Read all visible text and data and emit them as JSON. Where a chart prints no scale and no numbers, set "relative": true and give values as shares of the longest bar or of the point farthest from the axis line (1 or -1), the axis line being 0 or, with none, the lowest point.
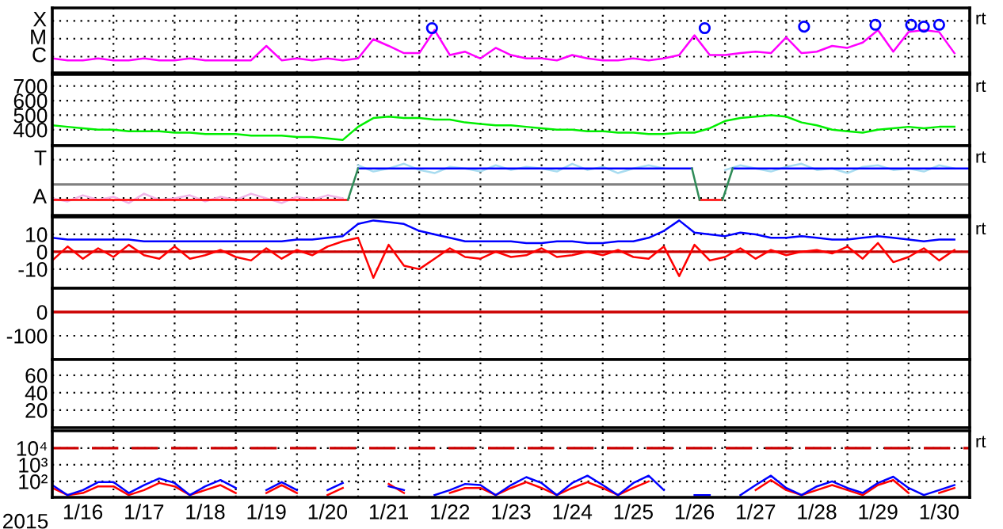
{
  "chart_data": [
    {
      "type": "line",
      "tick_labels": "y",
      "grid": true,
      "xlim": [
        "2015-01-16",
        "2015-01-31"
      ],
      "relative": true,
      "xticks": [
        {
          "value": "2015-01-17",
          "label": null
        },
        {
          "value": "2015-01-18",
          "label": null
        },
        {
          "value": "2015-01-19",
          "label": null
        },
        {
          "value": "2015-01-20",
          "label": null
        },
        {
          "value": "2015-01-21",
          "label": null
        },
        {
          "value": "2015-01-22",
          "label": null
        },
        {
          "value": "2015-01-23",
          "label": null
        },
        {
          "value": "2015-01-24",
          "label": null
        },
        {
          "value": "2015-01-25",
          "label": null
        },
        {
          "value": "2015-01-26",
          "label": null
        },
        {
          "value": "2015-01-27",
          "label": null
        },
        {
          "value": "2015-01-28",
          "label": null
        },
        {
          "value": "2015-01-29",
          "label": null
        },
        {
          "value": "2015-01-30",
          "label": null
        }
      ],
      "annotations": [
        "rt",
        "X",
        "M",
        "C"
      ],
      "x": [
        "2015-01-16T00:00",
        "2015-01-16T06:00",
        "2015-01-16T12:00",
        "2015-01-16T18:00",
        "2015-01-17T00:00",
        "2015-01-17T06:00",
        "2015-01-17T12:00",
        "2015-01-17T18:00",
        "2015-01-18T00:00",
        "2015-01-18T06:00",
        "2015-01-18T12:00",
        "2015-01-18T18:00",
        "2015-01-19T00:00",
        "2015-01-19T06:00",
        "2015-01-19T12:00",
        "2015-01-19T18:00",
        "2015-01-20T00:00",
        "2015-01-20T06:00",
        "2015-01-20T12:00",
        "2015-01-20T18:00",
        "2015-01-21T00:00",
        "2015-01-21T06:00",
        "2015-01-21T12:00",
        "2015-01-21T18:00",
        "2015-01-22T00:00",
        "2015-01-22T06:00",
        "2015-01-22T12:00",
        "2015-01-22T18:00",
        "2015-01-23T00:00",
        "2015-01-23T06:00",
        "2015-01-23T12:00",
        "2015-01-23T18:00",
        "2015-01-24T00:00",
        "2015-01-24T06:00",
        "2015-01-24T12:00",
        "2015-01-24T18:00",
        "2015-01-25T00:00",
        "2015-01-25T06:00",
        "2015-01-25T12:00",
        "2015-01-25T18:00",
        "2015-01-26T00:00",
        "2015-01-26T06:00",
        "2015-01-26T12:00",
        "2015-01-26T18:00",
        "2015-01-27T00:00",
        "2015-01-27T06:00",
        "2015-01-27T12:00",
        "2015-01-27T18:00",
        "2015-01-28T00:00",
        "2015-01-28T06:00",
        "2015-01-28T12:00",
        "2015-01-28T18:00",
        "2015-01-29T00:00",
        "2015-01-29T06:00",
        "2015-01-29T12:00",
        "2015-01-29T18:00",
        "2015-01-30T00:00",
        "2015-01-30T06:00",
        "2015-01-30T12:00",
        "2015-01-30T18:00"
      ],
      "series": [
        {
          "color": "#ff00ff",
          "values": [
            0.3,
            0.26,
            0.26,
            0.3,
            0.26,
            0.26,
            0.3,
            0.26,
            0.26,
            0.3,
            0.26,
            0.26,
            0.26,
            0.26,
            0.56,
            0.26,
            0.3,
            0.26,
            0.3,
            0.26,
            0.3,
            0.7,
            0.56,
            0.41,
            0.41,
            0.89,
            0.37,
            0.44,
            0.3,
            0.52,
            0.37,
            0.3,
            0.3,
            0.26,
            0.37,
            0.3,
            0.26,
            0.26,
            0.3,
            0.26,
            0.3,
            0.37,
            0.78,
            0.37,
            0.37,
            0.41,
            0.44,
            0.41,
            0.74,
            0.41,
            0.44,
            0.56,
            0.52,
            0.63,
            0.89,
            0.44,
            0.85,
            0.89,
            0.85,
            0.41
          ]
        },
        {
          "type": "scatter",
          "marker": "circle",
          "color": "#0000ff",
          "x": [
            "2015-01-22T05:00",
            "2015-01-26T16:00",
            "2015-01-28T07:00",
            "2015-01-29T11:00",
            "2015-01-30T01:00",
            "2015-01-30T06:00",
            "2015-01-30T12:00"
          ],
          "values": [
            0.93,
            0.93,
            0.96,
            1,
            1,
            0.96,
            1
          ]
        }
      ]
    },
    {
      "type": "line",
      "tick_labels": "y",
      "grid": true,
      "xlim": [
        "2015-01-16",
        "2015-01-31"
      ],
      "ylim": [
        290,
        780
      ],
      "yticks": [
        400,
        500,
        600,
        700
      ],
      "xticks": [
        {
          "value": "2015-01-17",
          "label": null
        },
        {
          "value": "2015-01-18",
          "label": null
        },
        {
          "value": "2015-01-19",
          "label": null
        },
        {
          "value": "2015-01-20",
          "label": null
        },
        {
          "value": "2015-01-21",
          "label": null
        },
        {
          "value": "2015-01-22",
          "label": null
        },
        {
          "value": "2015-01-23",
          "label": null
        },
        {
          "value": "2015-01-24",
          "label": null
        },
        {
          "value": "2015-01-25",
          "label": null
        },
        {
          "value": "2015-01-26",
          "label": null
        },
        {
          "value": "2015-01-27",
          "label": null
        },
        {
          "value": "2015-01-28",
          "label": null
        },
        {
          "value": "2015-01-29",
          "label": null
        },
        {
          "value": "2015-01-30",
          "label": null
        }
      ],
      "annotations": [
        "rt"
      ],
      "x": [
        "2015-01-16T00:00",
        "2015-01-16T06:00",
        "2015-01-16T12:00",
        "2015-01-16T18:00",
        "2015-01-17T00:00",
        "2015-01-17T06:00",
        "2015-01-17T12:00",
        "2015-01-17T18:00",
        "2015-01-18T00:00",
        "2015-01-18T06:00",
        "2015-01-18T12:00",
        "2015-01-18T18:00",
        "2015-01-19T00:00",
        "2015-01-19T06:00",
        "2015-01-19T12:00",
        "2015-01-19T18:00",
        "2015-01-20T00:00",
        "2015-01-20T06:00",
        "2015-01-20T12:00",
        "2015-01-20T18:00",
        "2015-01-21T00:00",
        "2015-01-21T06:00",
        "2015-01-21T12:00",
        "2015-01-21T18:00",
        "2015-01-22T00:00",
        "2015-01-22T06:00",
        "2015-01-22T12:00",
        "2015-01-22T18:00",
        "2015-01-23T00:00",
        "2015-01-23T06:00",
        "2015-01-23T12:00",
        "2015-01-23T18:00",
        "2015-01-24T00:00",
        "2015-01-24T06:00",
        "2015-01-24T12:00",
        "2015-01-24T18:00",
        "2015-01-25T00:00",
        "2015-01-25T06:00",
        "2015-01-25T12:00",
        "2015-01-25T18:00",
        "2015-01-26T00:00",
        "2015-01-26T06:00",
        "2015-01-26T12:00",
        "2015-01-26T18:00",
        "2015-01-27T00:00",
        "2015-01-27T06:00",
        "2015-01-27T12:00",
        "2015-01-27T18:00",
        "2015-01-28T00:00",
        "2015-01-28T06:00",
        "2015-01-28T12:00",
        "2015-01-28T18:00",
        "2015-01-29T00:00",
        "2015-01-29T06:00",
        "2015-01-29T12:00",
        "2015-01-29T18:00",
        "2015-01-30T00:00",
        "2015-01-30T06:00",
        "2015-01-30T12:00",
        "2015-01-30T18:00"
      ],
      "series": [
        {
          "color": "#00ee00",
          "values": [
            430,
            420,
            410,
            400,
            400,
            390,
            390,
            390,
            380,
            380,
            370,
            370,
            370,
            360,
            360,
            360,
            350,
            350,
            340,
            330,
            420,
            480,
            490,
            480,
            480,
            470,
            470,
            450,
            440,
            430,
            430,
            420,
            410,
            400,
            400,
            390,
            390,
            380,
            380,
            370,
            370,
            380,
            380,
            410,
            460,
            480,
            490,
            500,
            490,
            450,
            430,
            400,
            390,
            380,
            400,
            410,
            420,
            410,
            420,
            420
          ]
        }
      ]
    },
    {
      "type": "line",
      "tick_labels": "y",
      "grid": true,
      "xlim": [
        "2015-01-16",
        "2015-01-31"
      ],
      "relative": true,
      "xticks": [
        {
          "value": "2015-01-17",
          "label": null
        },
        {
          "value": "2015-01-18",
          "label": null
        },
        {
          "value": "2015-01-19",
          "label": null
        },
        {
          "value": "2015-01-20",
          "label": null
        },
        {
          "value": "2015-01-21",
          "label": null
        },
        {
          "value": "2015-01-22",
          "label": null
        },
        {
          "value": "2015-01-23",
          "label": null
        },
        {
          "value": "2015-01-24",
          "label": null
        },
        {
          "value": "2015-01-25",
          "label": null
        },
        {
          "value": "2015-01-26",
          "label": null
        },
        {
          "value": "2015-01-27",
          "label": null
        },
        {
          "value": "2015-01-28",
          "label": null
        },
        {
          "value": "2015-01-29",
          "label": null
        },
        {
          "value": "2015-01-30",
          "label": null
        }
      ],
      "annotations": [
        "rt",
        "T",
        "A"
      ],
      "ref_lines": [
        {
          "axis": "y",
          "value": 0.6,
          "label": null,
          "color": "#808080"
        }
      ],
      "x": [
        "2015-01-16T00:00",
        "2015-01-16T06:00",
        "2015-01-16T12:00",
        "2015-01-16T18:00",
        "2015-01-17T00:00",
        "2015-01-17T06:00",
        "2015-01-17T12:00",
        "2015-01-17T18:00",
        "2015-01-18T00:00",
        "2015-01-18T06:00",
        "2015-01-18T12:00",
        "2015-01-18T18:00",
        "2015-01-19T00:00",
        "2015-01-19T06:00",
        "2015-01-19T12:00",
        "2015-01-19T18:00",
        "2015-01-20T00:00",
        "2015-01-20T06:00",
        "2015-01-20T12:00",
        "2015-01-20T18:00",
        "2015-01-21T00:00",
        "2015-01-21T06:00",
        "2015-01-21T12:00",
        "2015-01-21T18:00",
        "2015-01-22T00:00",
        "2015-01-22T06:00",
        "2015-01-22T12:00",
        "2015-01-22T18:00",
        "2015-01-23T00:00",
        "2015-01-23T06:00",
        "2015-01-23T12:00",
        "2015-01-23T18:00",
        "2015-01-24T00:00",
        "2015-01-24T06:00",
        "2015-01-24T12:00",
        "2015-01-24T18:00",
        "2015-01-25T00:00",
        "2015-01-25T06:00",
        "2015-01-25T12:00",
        "2015-01-25T18:00",
        "2015-01-26T00:00",
        "2015-01-26T06:00",
        "2015-01-26T12:00",
        "2015-01-26T18:00",
        "2015-01-27T00:00",
        "2015-01-27T06:00",
        "2015-01-27T12:00",
        "2015-01-27T18:00",
        "2015-01-28T00:00",
        "2015-01-28T06:00",
        "2015-01-28T12:00",
        "2015-01-28T18:00",
        "2015-01-29T00:00",
        "2015-01-29T06:00",
        "2015-01-29T12:00",
        "2015-01-29T18:00",
        "2015-01-30T00:00",
        "2015-01-30T06:00",
        "2015-01-30T12:00",
        "2015-01-30T18:00"
      ],
      "series": [
        {
          "color": "#f0b4e8",
          "values": [
            0.33,
            0.27,
            0.39,
            0.3,
            0.36,
            0.24,
            0.42,
            0.3,
            0.33,
            0.39,
            0.27,
            0.36,
            0.3,
            0.42,
            0.33,
            0.24,
            0.36,
            0.3,
            0.39,
            0.33,
            null,
            null,
            null,
            null,
            null,
            null,
            null,
            null,
            null,
            null,
            null,
            null,
            null,
            null,
            null,
            null,
            null,
            null,
            null,
            null,
            null,
            null,
            null,
            null,
            null,
            null,
            null,
            null,
            null,
            null,
            null,
            null,
            null,
            null,
            null,
            null,
            null,
            null,
            null,
            null
          ]
        },
        {
          "color": "#a8dcf0",
          "values": [
            null,
            null,
            null,
            null,
            null,
            null,
            null,
            null,
            null,
            null,
            null,
            null,
            null,
            null,
            null,
            null,
            null,
            null,
            null,
            null,
            0.97,
            0.85,
            0.91,
            1,
            0.88,
            0.82,
            0.94,
            0.91,
            0.85,
            0.97,
            0.88,
            0.94,
            0.91,
            0.85,
            1,
            0.88,
            0.94,
            0.82,
            0.91,
            0.97,
            0.91,
            null,
            null,
            null,
            0.88,
            0.97,
            0.91,
            0.85,
            0.94,
            1,
            0.88,
            0.91,
            0.82,
            0.94,
            0.97,
            0.88,
            0.91,
            0.85,
            0.97,
            0.91
          ]
        },
        {
          "color": "#ff0000",
          "x": [
            "2015-01-16T00:00",
            "2015-01-20T20:00",
            "2015-01-21T00:00",
            "2015-01-26T14:00",
            "2015-01-26T23:00"
          ],
          "values": [
            0.3,
            0.3,
            null,
            0.3,
            0.3
          ]
        },
        {
          "color": "#0000ff",
          "x": [
            "2015-01-21T00:00",
            "2015-01-26T11:00",
            "2015-01-26T12:00",
            "2015-01-27T03:00",
            "2015-01-31T00:00"
          ],
          "values": [
            0.91,
            0.91,
            null,
            0.91,
            0.91
          ]
        },
        {
          "color": "#2e8b57",
          "x": [
            "2015-01-20T20:00",
            "2015-01-21T00:00",
            "2015-01-21T01:00",
            "2015-01-26T11:00",
            "2015-01-26T14:00",
            "2015-01-26T15:00",
            "2015-01-26T23:00",
            "2015-01-27T03:00"
          ],
          "values": [
            0.3,
            0.91,
            null,
            0.91,
            0.3,
            null,
            0.3,
            0.91
          ]
        }
      ]
    },
    {
      "type": "line",
      "tick_labels": "y",
      "grid": true,
      "xlim": [
        "2015-01-16",
        "2015-01-31"
      ],
      "ylim": [
        -21,
        20
      ],
      "yticks": [
        10,
        0,
        -10
      ],
      "xticks": [
        {
          "value": "2015-01-17",
          "label": null
        },
        {
          "value": "2015-01-18",
          "label": null
        },
        {
          "value": "2015-01-19",
          "label": null
        },
        {
          "value": "2015-01-20",
          "label": null
        },
        {
          "value": "2015-01-21",
          "label": null
        },
        {
          "value": "2015-01-22",
          "label": null
        },
        {
          "value": "2015-01-23",
          "label": null
        },
        {
          "value": "2015-01-24",
          "label": null
        },
        {
          "value": "2015-01-25",
          "label": null
        },
        {
          "value": "2015-01-26",
          "label": null
        },
        {
          "value": "2015-01-27",
          "label": null
        },
        {
          "value": "2015-01-28",
          "label": null
        },
        {
          "value": "2015-01-29",
          "label": null
        },
        {
          "value": "2015-01-30",
          "label": null
        }
      ],
      "annotations": [
        "rt"
      ],
      "ref_lines": [
        {
          "axis": "y",
          "value": 0,
          "label": null,
          "color": "#cc0000"
        }
      ],
      "x": [
        "2015-01-16T00:00",
        "2015-01-16T06:00",
        "2015-01-16T12:00",
        "2015-01-16T18:00",
        "2015-01-17T00:00",
        "2015-01-17T06:00",
        "2015-01-17T12:00",
        "2015-01-17T18:00",
        "2015-01-18T00:00",
        "2015-01-18T06:00",
        "2015-01-18T12:00",
        "2015-01-18T18:00",
        "2015-01-19T00:00",
        "2015-01-19T06:00",
        "2015-01-19T12:00",
        "2015-01-19T18:00",
        "2015-01-20T00:00",
        "2015-01-20T06:00",
        "2015-01-20T12:00",
        "2015-01-20T18:00",
        "2015-01-21T00:00",
        "2015-01-21T06:00",
        "2015-01-21T12:00",
        "2015-01-21T18:00",
        "2015-01-22T00:00",
        "2015-01-22T06:00",
        "2015-01-22T12:00",
        "2015-01-22T18:00",
        "2015-01-23T00:00",
        "2015-01-23T06:00",
        "2015-01-23T12:00",
        "2015-01-23T18:00",
        "2015-01-24T00:00",
        "2015-01-24T06:00",
        "2015-01-24T12:00",
        "2015-01-24T18:00",
        "2015-01-25T00:00",
        "2015-01-25T06:00",
        "2015-01-25T12:00",
        "2015-01-25T18:00",
        "2015-01-26T00:00",
        "2015-01-26T06:00",
        "2015-01-26T12:00",
        "2015-01-26T18:00",
        "2015-01-27T00:00",
        "2015-01-27T06:00",
        "2015-01-27T12:00",
        "2015-01-27T18:00",
        "2015-01-28T00:00",
        "2015-01-28T06:00",
        "2015-01-28T12:00",
        "2015-01-28T18:00",
        "2015-01-29T00:00",
        "2015-01-29T06:00",
        "2015-01-29T12:00",
        "2015-01-29T18:00",
        "2015-01-30T00:00",
        "2015-01-30T06:00",
        "2015-01-30T12:00",
        "2015-01-30T18:00"
      ],
      "series": [
        {
          "color": "#ff0000",
          "values": [
            -5,
            3,
            -4,
            2,
            -3,
            4,
            -2,
            -4,
            3,
            -4,
            -2,
            1,
            -3,
            -5,
            2,
            -4,
            1,
            -2,
            3,
            6,
            8,
            -15,
            4,
            -8,
            -10,
            -4,
            2,
            -3,
            -4,
            0,
            -3,
            -2,
            2,
            -3,
            -2,
            0,
            -2,
            1,
            -3,
            -4,
            3,
            -14,
            4,
            -5,
            -3,
            2,
            -4,
            1,
            -2,
            0,
            1,
            -1,
            3,
            -4,
            5,
            -6,
            -3,
            2,
            -5,
            1
          ]
        },
        {
          "color": "#0000ff",
          "values": [
            8,
            7,
            7,
            7,
            7,
            7,
            6,
            6,
            6,
            6,
            6,
            6,
            6,
            6,
            6,
            6,
            7,
            7,
            8,
            9,
            16,
            18,
            17,
            16,
            12,
            10,
            8,
            6,
            6,
            6,
            6,
            5,
            5,
            6,
            6,
            5,
            5,
            6,
            6,
            8,
            12,
            18,
            11,
            10,
            9,
            11,
            10,
            8,
            8,
            9,
            8,
            7,
            7,
            8,
            9,
            8,
            7,
            6,
            7,
            7
          ]
        }
      ]
    },
    {
      "type": "line",
      "tick_labels": "y",
      "grid": true,
      "xlim": [
        "2015-01-16",
        "2015-01-31"
      ],
      "ylim": [
        -200,
        100
      ],
      "yticks": [
        0,
        -100
      ],
      "xticks": [
        {
          "value": "2015-01-17",
          "label": null
        },
        {
          "value": "2015-01-18",
          "label": null
        },
        {
          "value": "2015-01-19",
          "label": null
        },
        {
          "value": "2015-01-20",
          "label": null
        },
        {
          "value": "2015-01-21",
          "label": null
        },
        {
          "value": "2015-01-22",
          "label": null
        },
        {
          "value": "2015-01-23",
          "label": null
        },
        {
          "value": "2015-01-24",
          "label": null
        },
        {
          "value": "2015-01-25",
          "label": null
        },
        {
          "value": "2015-01-26",
          "label": null
        },
        {
          "value": "2015-01-27",
          "label": null
        },
        {
          "value": "2015-01-28",
          "label": null
        },
        {
          "value": "2015-01-29",
          "label": null
        },
        {
          "value": "2015-01-30",
          "label": null
        }
      ],
      "ref_lines": [
        {
          "axis": "y",
          "value": 0,
          "label": null,
          "color": "#cc0000"
        }
      ]
    },
    {
      "type": "line",
      "tick_labels": "y",
      "grid": true,
      "xlim": [
        "2015-01-16",
        "2015-01-31"
      ],
      "ylim": [
        0,
        78
      ],
      "yticks": [
        20,
        40,
        60
      ],
      "xticks": [
        {
          "value": "2015-01-17",
          "label": null
        },
        {
          "value": "2015-01-18",
          "label": null
        },
        {
          "value": "2015-01-19",
          "label": null
        },
        {
          "value": "2015-01-20",
          "label": null
        },
        {
          "value": "2015-01-21",
          "label": null
        },
        {
          "value": "2015-01-22",
          "label": null
        },
        {
          "value": "2015-01-23",
          "label": null
        },
        {
          "value": "2015-01-24",
          "label": null
        },
        {
          "value": "2015-01-25",
          "label": null
        },
        {
          "value": "2015-01-26",
          "label": null
        },
        {
          "value": "2015-01-27",
          "label": null
        },
        {
          "value": "2015-01-28",
          "label": null
        },
        {
          "value": "2015-01-29",
          "label": null
        },
        {
          "value": "2015-01-30",
          "label": null
        }
      ]
    },
    {
      "type": "line",
      "log": "y",
      "grid": true,
      "xlim": [
        "2015-01-16",
        "2015-01-31"
      ],
      "ylim": [
        11,
        110000
      ],
      "yticks": [
        {
          "value": 10000,
          "label": "10⁴"
        },
        {
          "value": 1000,
          "label": "10³"
        },
        {
          "value": 100,
          "label": "10²"
        }
      ],
      "xticks": [
        {
          "value": "2015-01-16T12:00",
          "label": "1/16"
        },
        {
          "value": "2015-01-17",
          "label": null
        },
        {
          "value": "2015-01-17T12:00",
          "label": "1/17"
        },
        {
          "value": "2015-01-18",
          "label": null
        },
        {
          "value": "2015-01-18T12:00",
          "label": "1/18"
        },
        {
          "value": "2015-01-19",
          "label": null
        },
        {
          "value": "2015-01-19T12:00",
          "label": "1/19"
        },
        {
          "value": "2015-01-20",
          "label": null
        },
        {
          "value": "2015-01-20T12:00",
          "label": "1/20"
        },
        {
          "value": "2015-01-21",
          "label": null
        },
        {
          "value": "2015-01-21T12:00",
          "label": "1/21"
        },
        {
          "value": "2015-01-22",
          "label": null
        },
        {
          "value": "2015-01-22T12:00",
          "label": "1/22"
        },
        {
          "value": "2015-01-23",
          "label": null
        },
        {
          "value": "2015-01-23T12:00",
          "label": "1/23"
        },
        {
          "value": "2015-01-24",
          "label": null
        },
        {
          "value": "2015-01-24T12:00",
          "label": "1/24"
        },
        {
          "value": "2015-01-25",
          "label": null
        },
        {
          "value": "2015-01-25T12:00",
          "label": "1/25"
        },
        {
          "value": "2015-01-26",
          "label": null
        },
        {
          "value": "2015-01-26T12:00",
          "label": "1/26"
        },
        {
          "value": "2015-01-27",
          "label": null
        },
        {
          "value": "2015-01-27T12:00",
          "label": "1/27"
        },
        {
          "value": "2015-01-28",
          "label": null
        },
        {
          "value": "2015-01-28T12:00",
          "label": "1/28"
        },
        {
          "value": "2015-01-29",
          "label": null
        },
        {
          "value": "2015-01-29T12:00",
          "label": "1/29"
        },
        {
          "value": "2015-01-30",
          "label": null
        },
        {
          "value": "2015-01-30T12:00",
          "label": "1/30"
        }
      ],
      "xlabel": "2015",
      "annotations": [
        "rt"
      ],
      "ref_lines": [
        {
          "axis": "y",
          "value": 10000,
          "label": null,
          "color": "#cc0000",
          "line_style": "dashed"
        }
      ],
      "x": [
        "2015-01-16T00:00",
        "2015-01-16T06:00",
        "2015-01-16T12:00",
        "2015-01-16T18:00",
        "2015-01-17T00:00",
        "2015-01-17T06:00",
        "2015-01-17T12:00",
        "2015-01-17T18:00",
        "2015-01-18T00:00",
        "2015-01-18T06:00",
        "2015-01-18T12:00",
        "2015-01-18T18:00",
        "2015-01-19T00:00",
        "2015-01-19T06:00",
        "2015-01-19T12:00",
        "2015-01-19T18:00",
        "2015-01-20T00:00",
        "2015-01-20T06:00",
        "2015-01-20T12:00",
        "2015-01-20T18:00",
        "2015-01-21T00:00",
        "2015-01-21T06:00",
        "2015-01-21T12:00",
        "2015-01-21T18:00",
        "2015-01-22T00:00",
        "2015-01-22T06:00",
        "2015-01-22T12:00",
        "2015-01-22T18:00",
        "2015-01-23T00:00",
        "2015-01-23T06:00",
        "2015-01-23T12:00",
        "2015-01-23T18:00",
        "2015-01-24T00:00",
        "2015-01-24T06:00",
        "2015-01-24T12:00",
        "2015-01-24T18:00",
        "2015-01-25T00:00",
        "2015-01-25T06:00",
        "2015-01-25T12:00",
        "2015-01-25T18:00",
        "2015-01-26T00:00",
        "2015-01-26T06:00",
        "2015-01-26T12:00",
        "2015-01-26T18:00",
        "2015-01-27T00:00",
        "2015-01-27T06:00",
        "2015-01-27T12:00",
        "2015-01-27T18:00",
        "2015-01-28T00:00",
        "2015-01-28T06:00",
        "2015-01-28T12:00",
        "2015-01-28T18:00",
        "2015-01-29T00:00",
        "2015-01-29T06:00",
        "2015-01-29T12:00",
        "2015-01-29T18:00",
        "2015-01-30T00:00",
        "2015-01-30T06:00",
        "2015-01-30T12:00",
        "2015-01-30T18:00"
      ],
      "series": [
        {
          "color": "#ff0000",
          "values": [
            40,
            15,
            20,
            50,
            50,
            15,
            30,
            80,
            50,
            15,
            30,
            60,
            20,
            null,
            20,
            60,
            20,
            null,
            15,
            40,
            null,
            null,
            70,
            20,
            null,
            null,
            20,
            40,
            40,
            15,
            40,
            90,
            40,
            15,
            40,
            90,
            40,
            15,
            40,
            100,
            null,
            null,
            null,
            null,
            null,
            null,
            30,
            120,
            30,
            15,
            30,
            60,
            30,
            15,
            60,
            120,
            20,
            null,
            20,
            40
          ]
        },
        {
          "color": "#0000ff",
          "values": [
            60,
            15,
            30,
            90,
            90,
            20,
            60,
            150,
            80,
            15,
            50,
            120,
            40,
            null,
            30,
            90,
            30,
            null,
            30,
            80,
            null,
            null,
            50,
            30,
            null,
            15,
            30,
            70,
            60,
            15,
            60,
            180,
            80,
            15,
            80,
            220,
            60,
            15,
            80,
            220,
            30,
            null,
            15,
            15,
            null,
            15,
            60,
            220,
            40,
            15,
            50,
            100,
            40,
            20,
            80,
            190,
            40,
            15,
            30,
            60
          ]
        }
      ]
    }
  ]
}
